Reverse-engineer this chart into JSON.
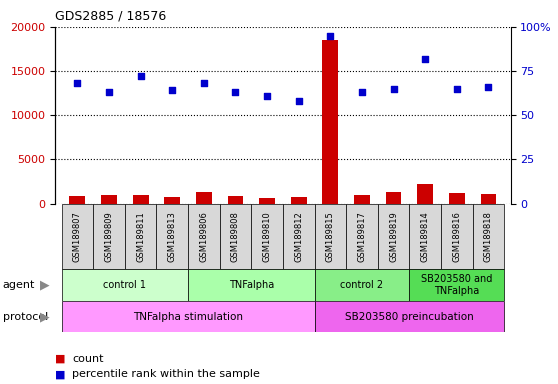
{
  "title": "GDS2885 / 18576",
  "samples": [
    "GSM189807",
    "GSM189809",
    "GSM189811",
    "GSM189813",
    "GSM189806",
    "GSM189808",
    "GSM189810",
    "GSM189812",
    "GSM189815",
    "GSM189817",
    "GSM189819",
    "GSM189814",
    "GSM189816",
    "GSM189818"
  ],
  "count_values": [
    900,
    1000,
    950,
    750,
    1300,
    900,
    650,
    700,
    18500,
    950,
    1300,
    2200,
    1200,
    1100
  ],
  "percentile_values": [
    68,
    63,
    72,
    64,
    68,
    63,
    61,
    58,
    95,
    63,
    65,
    82,
    65,
    66
  ],
  "count_color": "#cc0000",
  "percentile_color": "#0000cc",
  "left_ylim": [
    0,
    20000
  ],
  "right_ylim": [
    0,
    100
  ],
  "left_yticks": [
    0,
    5000,
    10000,
    15000,
    20000
  ],
  "right_yticks": [
    0,
    25,
    50,
    75,
    100
  ],
  "right_yticklabels": [
    "0",
    "25",
    "50",
    "75",
    "100%"
  ],
  "agent_groups": [
    {
      "label": "control 1",
      "start": 0,
      "end": 4,
      "color": "#ccffcc"
    },
    {
      "label": "TNFalpha",
      "start": 4,
      "end": 8,
      "color": "#aaffaa"
    },
    {
      "label": "control 2",
      "start": 8,
      "end": 11,
      "color": "#88ee88"
    },
    {
      "label": "SB203580 and\nTNFalpha",
      "start": 11,
      "end": 14,
      "color": "#55dd55"
    }
  ],
  "protocol_groups": [
    {
      "label": "TNFalpha stimulation",
      "start": 0,
      "end": 8,
      "color": "#ff99ff"
    },
    {
      "label": "SB203580 preincubation",
      "start": 8,
      "end": 14,
      "color": "#ee66ee"
    }
  ],
  "bg_color": "#ffffff",
  "sample_bg_color": "#d8d8d8",
  "agent_label": "agent",
  "protocol_label": "protocol"
}
